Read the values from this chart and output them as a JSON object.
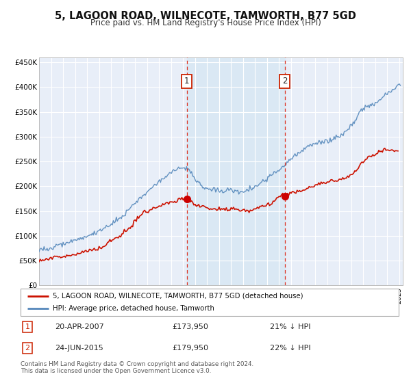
{
  "title": "5, LAGOON ROAD, WILNECOTE, TAMWORTH, B77 5GD",
  "subtitle": "Price paid vs. HM Land Registry's House Price Index (HPI)",
  "title_fontsize": 10.5,
  "subtitle_fontsize": 8.5,
  "background_color": "#ffffff",
  "plot_bg_color": "#e8eef8",
  "grid_color": "#ffffff",
  "ylim": [
    0,
    460000
  ],
  "xlim_start": 1995.0,
  "xlim_end": 2025.3,
  "hpi_color": "#5588bb",
  "price_color": "#cc1100",
  "marker_color": "#cc0000",
  "annotation_bg": "#d8e8f4",
  "sale1_x": 2007.3,
  "sale1_y": 173950,
  "sale2_x": 2015.48,
  "sale2_y": 179950,
  "sale1_date": "20-APR-2007",
  "sale1_price": "£173,950",
  "sale1_hpi": "21% ↓ HPI",
  "sale2_date": "24-JUN-2015",
  "sale2_price": "£179,950",
  "sale2_hpi": "22% ↓ HPI",
  "legend_label1": "5, LAGOON ROAD, WILNECOTE, TAMWORTH, B77 5GD (detached house)",
  "legend_label2": "HPI: Average price, detached house, Tamworth",
  "footer_text": "Contains HM Land Registry data © Crown copyright and database right 2024.\nThis data is licensed under the Open Government Licence v3.0.",
  "ytick_labels": [
    "£0",
    "£50K",
    "£100K",
    "£150K",
    "£200K",
    "£250K",
    "£300K",
    "£350K",
    "£400K",
    "£450K"
  ],
  "ytick_values": [
    0,
    50000,
    100000,
    150000,
    200000,
    250000,
    300000,
    350000,
    400000,
    450000
  ]
}
